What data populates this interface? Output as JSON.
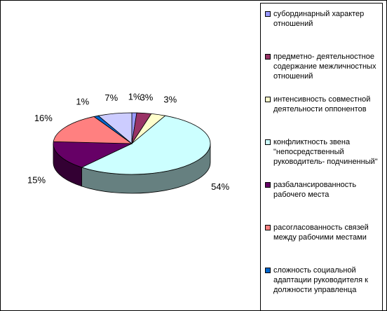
{
  "chart_data": {
    "type": "pie3d",
    "categories": [
      "субординарный характер отношений",
      "предметно- деятельностное содержание межличностных отношений",
      "интенсивность совместной деятельности оппонентов",
      "конфликтность звена \"непосредственный руководитель- подчиненный\"",
      "разбалансированность рабочего места",
      "расогласованность связей между рабочими местами",
      "сложность социальной адаптации руководителя к должности управленца",
      null
    ],
    "values": [
      1,
      3,
      3,
      54,
      15,
      16,
      1,
      7
    ],
    "value_labels": [
      "1%",
      "3%",
      "3%",
      "54%",
      "15%",
      "16%",
      "1%",
      "7%"
    ],
    "colors": [
      "#9999ff",
      "#993366",
      "#ffffcc",
      "#ccffff",
      "#660066",
      "#ff8080",
      "#0066cc",
      "#ccccff"
    ],
    "legend": "right"
  }
}
